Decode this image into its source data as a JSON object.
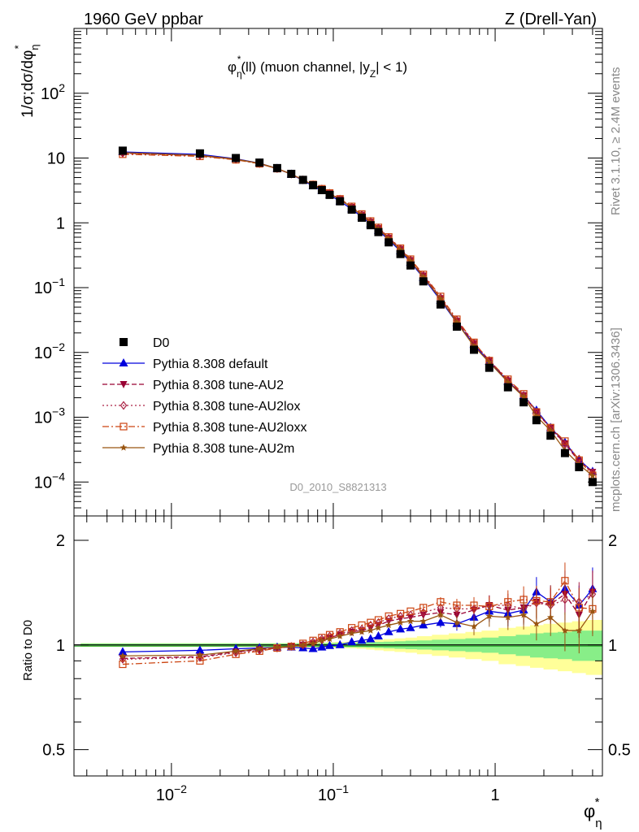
{
  "header": {
    "left": "1960 GeV ppbar",
    "right": "Z (Drell-Yan)"
  },
  "side_labels": {
    "rivet": "Rivet 3.1.10, ≥ 2.4M events",
    "mcplots": "mcplots.cern.ch [arXiv:1306.3436]"
  },
  "chart_data": {
    "type": "line",
    "title": "φη*(ll) (muon channel, |yZ| < 1)",
    "title_parts": {
      "phi": "φ",
      "eta": "η",
      "star": "*",
      "ll": "(ll) (muon channel, |",
      "y": "y",
      "z": "Z",
      "tail": "| < 1)"
    },
    "analysis_id": "D0_2010_S8821313",
    "x_axis": {
      "label_main": "φ",
      "label_sub": "η",
      "label_sup": "*",
      "scale": "log",
      "range": [
        0.0025,
        4.6
      ],
      "ticks": [
        {
          "value": 0.01,
          "base": "10",
          "exp": "−2"
        },
        {
          "value": 0.1,
          "base": "10",
          "exp": "−1"
        },
        {
          "value": 1,
          "base": "1",
          "exp": ""
        }
      ]
    },
    "main_panel": {
      "ylabel": "1/σ;dσ/dφη*",
      "ylabel_parts": {
        "a": "1/σ;dσ/dφ",
        "sub": "η",
        "sup": "*"
      },
      "scale": "log",
      "ylim": [
        3e-05,
        1000
      ],
      "ticks": [
        {
          "value": 100,
          "base": "10",
          "exp": "2"
        },
        {
          "value": 10,
          "base": "10",
          "exp": ""
        },
        {
          "value": 1,
          "base": "1",
          "exp": ""
        },
        {
          "value": 0.1,
          "base": "10",
          "exp": "−1"
        },
        {
          "value": 0.01,
          "base": "10",
          "exp": "−2"
        },
        {
          "value": 0.001,
          "base": "10",
          "exp": "−3"
        },
        {
          "value": 0.0001,
          "base": "10",
          "exp": "−4"
        }
      ]
    },
    "ratio_panel": {
      "ylabel": "Ratio to D0",
      "ylim": [
        0.42,
        2.35
      ],
      "ticks": [
        {
          "value": 0.5,
          "label": "0.5"
        },
        {
          "value": 1,
          "label": "1"
        },
        {
          "value": 2,
          "label": "2"
        }
      ]
    },
    "legend_position": "lower-left",
    "x": [
      0.005,
      0.015,
      0.025,
      0.035,
      0.045,
      0.055,
      0.065,
      0.075,
      0.085,
      0.095,
      0.11,
      0.13,
      0.15,
      0.17,
      0.19,
      0.22,
      0.26,
      0.3,
      0.36,
      0.46,
      0.58,
      0.74,
      0.92,
      1.2,
      1.5,
      1.8,
      2.2,
      2.7,
      3.3,
      4.0
    ],
    "data": {
      "name": "D0",
      "values": [
        13.0,
        11.8,
        10.0,
        8.5,
        7.0,
        5.7,
        4.6,
        3.8,
        3.2,
        2.7,
        2.15,
        1.6,
        1.2,
        0.92,
        0.72,
        0.5,
        0.33,
        0.22,
        0.125,
        0.055,
        0.025,
        0.011,
        0.0058,
        0.0029,
        0.0017,
        0.0009,
        0.00052,
        0.00028,
        0.00017,
        0.0001
      ]
    },
    "band_inner": [
      0.01,
      0.01,
      0.01,
      0.01,
      0.01,
      0.01,
      0.012,
      0.012,
      0.012,
      0.013,
      0.014,
      0.015,
      0.016,
      0.017,
      0.02,
      0.022,
      0.025,
      0.028,
      0.03,
      0.035,
      0.04,
      0.045,
      0.05,
      0.06,
      0.07,
      0.08,
      0.085,
      0.09,
      0.1,
      0.1
    ],
    "band_outer": [
      0.012,
      0.012,
      0.012,
      0.012,
      0.012,
      0.012,
      0.014,
      0.015,
      0.016,
      0.018,
      0.02,
      0.022,
      0.025,
      0.03,
      0.035,
      0.04,
      0.045,
      0.05,
      0.06,
      0.07,
      0.08,
      0.09,
      0.1,
      0.12,
      0.13,
      0.14,
      0.15,
      0.16,
      0.17,
      0.18
    ],
    "series": [
      {
        "name": "Pythia 8.308 default",
        "color": "#0000dd",
        "dash": "",
        "marker": "triangle-up",
        "ratio": [
          0.955,
          0.965,
          0.975,
          0.98,
          0.985,
          0.985,
          0.98,
          0.975,
          0.985,
          0.995,
          1.0,
          1.02,
          1.03,
          1.04,
          1.06,
          1.09,
          1.11,
          1.12,
          1.14,
          1.16,
          1.15,
          1.2,
          1.25,
          1.23,
          1.26,
          1.42,
          1.33,
          1.45,
          1.3,
          1.45
        ]
      },
      {
        "name": "Pythia 8.308 tune-AU2",
        "color": "#990033",
        "dash": "6,3",
        "marker": "triangle-down",
        "ratio": [
          0.915,
          0.925,
          0.955,
          0.97,
          0.98,
          0.99,
          1.0,
          1.01,
          1.03,
          1.05,
          1.07,
          1.09,
          1.1,
          1.12,
          1.14,
          1.17,
          1.19,
          1.2,
          1.22,
          1.24,
          1.22,
          1.26,
          1.3,
          1.26,
          1.28,
          1.33,
          1.31,
          1.4,
          1.22,
          1.42
        ]
      },
      {
        "name": "Pythia 8.308 tune-AU2lox",
        "color": "#aa2244",
        "dash": "2,3",
        "marker": "diamond",
        "ratio": [
          0.91,
          0.92,
          0.95,
          0.965,
          0.98,
          0.99,
          1.0,
          1.02,
          1.04,
          1.06,
          1.08,
          1.1,
          1.11,
          1.14,
          1.16,
          1.19,
          1.21,
          1.22,
          1.24,
          1.28,
          1.27,
          1.27,
          1.3,
          1.3,
          1.27,
          1.32,
          1.3,
          1.35,
          1.33,
          1.4
        ]
      },
      {
        "name": "Pythia 8.308 tune-AU2loxx",
        "color": "#cc4411",
        "dash": "8,3,2,3",
        "marker": "square",
        "ratio": [
          0.88,
          0.9,
          0.94,
          0.96,
          0.98,
          0.99,
          1.01,
          1.03,
          1.05,
          1.07,
          1.09,
          1.12,
          1.14,
          1.16,
          1.18,
          1.21,
          1.23,
          1.25,
          1.28,
          1.33,
          1.3,
          1.3,
          1.29,
          1.33,
          1.35,
          1.34,
          1.33,
          1.53,
          1.28,
          1.27
        ]
      },
      {
        "name": "Pythia 8.308 tune-AU2m",
        "color": "#995511",
        "dash": "",
        "marker": "star",
        "ratio": [
          0.93,
          0.935,
          0.96,
          0.975,
          0.985,
          0.99,
          1.0,
          1.01,
          1.03,
          1.04,
          1.06,
          1.08,
          1.09,
          1.1,
          1.12,
          1.14,
          1.16,
          1.17,
          1.17,
          1.22,
          1.16,
          1.13,
          1.21,
          1.2,
          1.22,
          1.15,
          1.2,
          1.1,
          1.1,
          1.25
        ]
      }
    ]
  }
}
